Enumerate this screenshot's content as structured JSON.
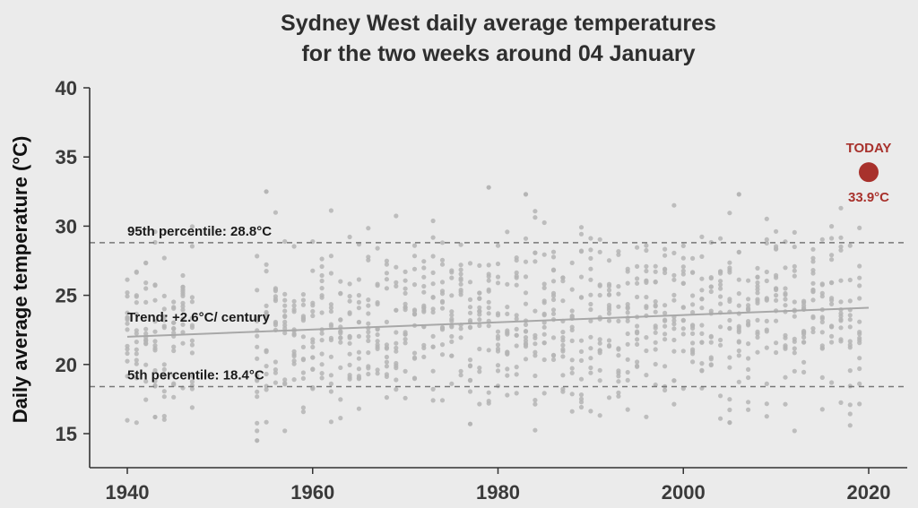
{
  "chart_data": {
    "type": "scatter",
    "title": [
      "Sydney West daily average temperatures",
      "for the two weeks around 04 January"
    ],
    "ylabel": "Daily average temperature (°C)",
    "xlabel": "",
    "xlim": [
      1936,
      2024
    ],
    "ylim": [
      12.5,
      40
    ],
    "xticks": [
      1940,
      1960,
      1980,
      2000,
      2020
    ],
    "yticks": [
      15,
      20,
      25,
      30,
      35,
      40
    ],
    "grid": false,
    "colors": {
      "points": "#b5b5b5",
      "today": "#a8312c",
      "trend": "#a8a8a8",
      "reference": "#777777"
    },
    "points_summary": {
      "year_range": [
        1940,
        2020
      ],
      "typical_range_c": [
        17,
        29
      ],
      "extremes": [
        {
          "x": 1954,
          "y": 14.5
        },
        {
          "x": 1955,
          "y": 32.5
        },
        {
          "x": 1979,
          "y": 32.8
        },
        {
          "x": 1983,
          "y": 32.3
        },
        {
          "x": 2006,
          "y": 32.3
        },
        {
          "x": 2005,
          "y": 15.8
        },
        {
          "x": 1977,
          "y": 15.7
        },
        {
          "x": 1943,
          "y": 16.2
        }
      ]
    },
    "percentile_95": {
      "label": "95th percentile:  28.8°C",
      "value": 28.8
    },
    "percentile_5": {
      "label": "5th percentile:  18.4°C",
      "value": 18.4
    },
    "trend": {
      "label": "Trend: +2.6°C/ century",
      "x": [
        1940,
        2020
      ],
      "y": [
        22.0,
        24.1
      ]
    },
    "today": {
      "label": "TODAY",
      "value_label": "33.9°C",
      "x": 2020,
      "y": 33.9
    }
  }
}
